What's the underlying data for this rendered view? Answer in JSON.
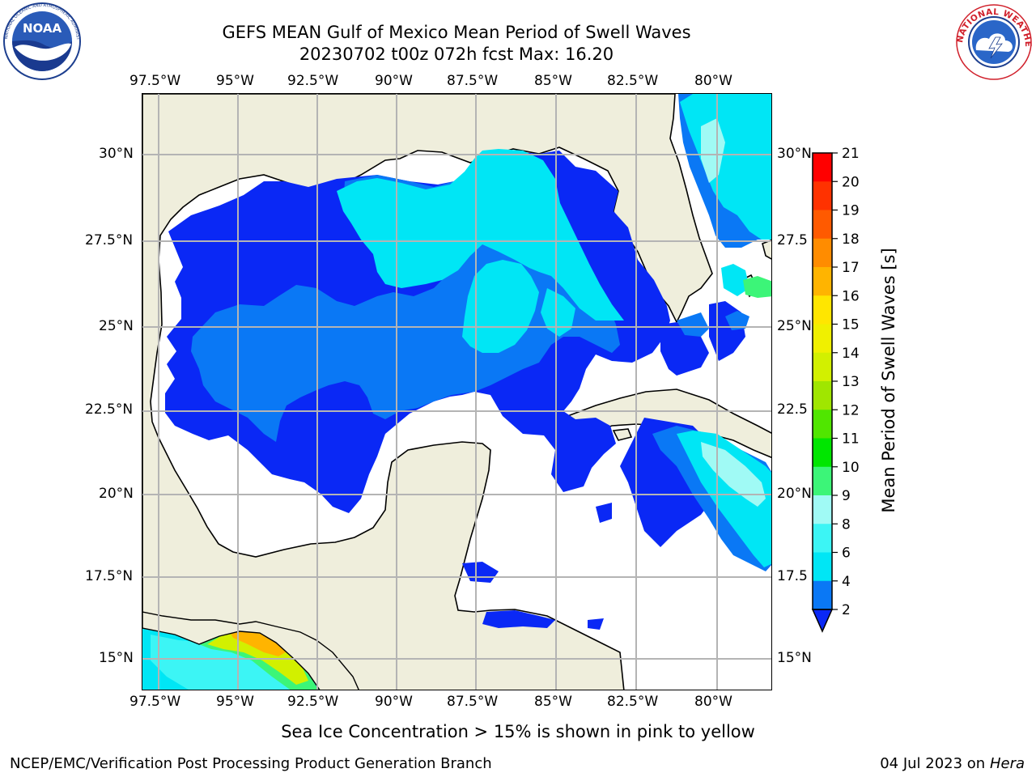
{
  "title": {
    "line1": "GEFS MEAN Gulf of Mexico Mean Period of Swell Waves",
    "line2": "20230702 t00z 072h fcst   Max: 16.20"
  },
  "logos": {
    "left": {
      "name": "noaa-logo",
      "text": "NOAA",
      "ring_text": "NATIONAL OCEANIC AND ATMOSPHERIC ADMINISTRATION · U.S. DEPARTMENT OF COMMERCE"
    },
    "right": {
      "name": "nws-logo",
      "ring_text": "NATIONAL WEATHER SERVICE"
    }
  },
  "map": {
    "lon_labels": [
      "97.5°W",
      "95°W",
      "92.5°W",
      "90°W",
      "87.5°W",
      "85°W",
      "82.5°W",
      "80°W"
    ],
    "lat_labels_left": [
      "30°N",
      "27.5°N",
      "25°N",
      "22.5°N",
      "20°N",
      "17.5°N",
      "15°N"
    ],
    "lat_labels_right": [
      "30°N",
      "27.5",
      "25°N",
      "22.5",
      "20°N",
      "17.5",
      "15°N"
    ],
    "land_color": "#efeedc",
    "ocean_no_data_color": "#ffffff",
    "grid_color": "#b4b4b4"
  },
  "colorbar": {
    "label": "Mean Period of Swell Waves [s]",
    "ticks": [
      "2",
      "4",
      "6",
      "8",
      "9",
      "10",
      "11",
      "12",
      "13",
      "14",
      "15",
      "16",
      "17",
      "18",
      "19",
      "20",
      "21"
    ],
    "colors": [
      "#0a28f5",
      "#0a78f5",
      "#00e6f5",
      "#3cf5f5",
      "#a0faf5",
      "#3cf578",
      "#00e600",
      "#50e600",
      "#a0e600",
      "#d2f000",
      "#f0f000",
      "#ffe600",
      "#ffb400",
      "#ff8c00",
      "#ff5a00",
      "#ff3200",
      "#ff0000"
    ]
  },
  "footer": {
    "ice_note": "Sea Ice Concentration > 15% is shown in pink to yellow",
    "credit_left": "NCEP/EMC/Verification Post Processing Product Generation Branch",
    "credit_date": "04 Jul 2023 on ",
    "credit_host": "Hera"
  }
}
